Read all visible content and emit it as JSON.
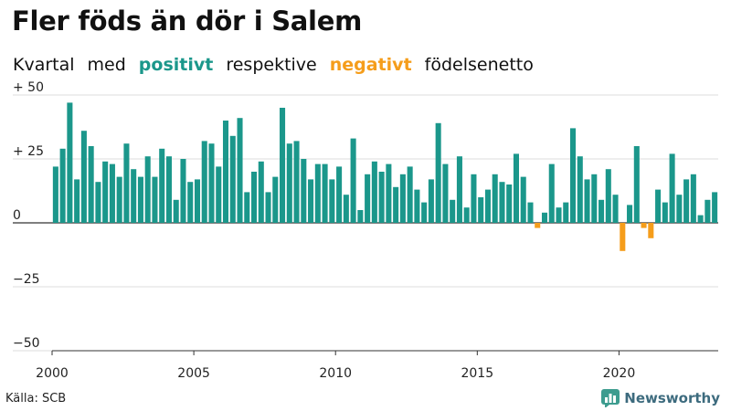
{
  "header": {
    "title": "Fler föds än dör i Salem",
    "subtitle_parts": [
      "Kvartal",
      "med",
      "positivt",
      "respektive",
      "negativt",
      "födelsenetto"
    ]
  },
  "footer": {
    "source": "Källa: SCB",
    "brand": "Newsworthy",
    "brand_icon": "bar-chart-logo-icon"
  },
  "colors": {
    "positive": "#1b978b",
    "negative": "#f59d1b",
    "grid": "#dddddd",
    "axis": "#333333"
  },
  "chart_data": {
    "type": "bar",
    "xlabel": "",
    "ylabel": "",
    "ylim": [
      -50,
      50
    ],
    "yticks": [
      50,
      25,
      0,
      -25,
      -50
    ],
    "ytick_labels": [
      "+ 50",
      "+ 25",
      "0",
      "−25",
      "−50"
    ],
    "x_tick_labels": [
      "2000",
      "2005",
      "2010",
      "2015",
      "2020"
    ],
    "grid": true,
    "start": "2000 Q1",
    "frequency": "quarter",
    "values": [
      22,
      29,
      47,
      17,
      36,
      30,
      16,
      24,
      23,
      18,
      31,
      21,
      18,
      26,
      18,
      29,
      26,
      9,
      25,
      16,
      17,
      32,
      31,
      22,
      40,
      34,
      41,
      12,
      20,
      24,
      12,
      18,
      45,
      31,
      32,
      25,
      17,
      23,
      23,
      17,
      22,
      11,
      33,
      5,
      19,
      24,
      20,
      23,
      14,
      19,
      22,
      13,
      8,
      17,
      39,
      23,
      9,
      26,
      6,
      19,
      10,
      13,
      19,
      16,
      15,
      27,
      18,
      8,
      -2,
      4,
      23,
      6,
      8,
      37,
      26,
      17,
      19,
      9,
      21,
      11,
      -11,
      7,
      30,
      -2,
      -6,
      13,
      8,
      27,
      11,
      17,
      19,
      3,
      9,
      12
    ]
  }
}
